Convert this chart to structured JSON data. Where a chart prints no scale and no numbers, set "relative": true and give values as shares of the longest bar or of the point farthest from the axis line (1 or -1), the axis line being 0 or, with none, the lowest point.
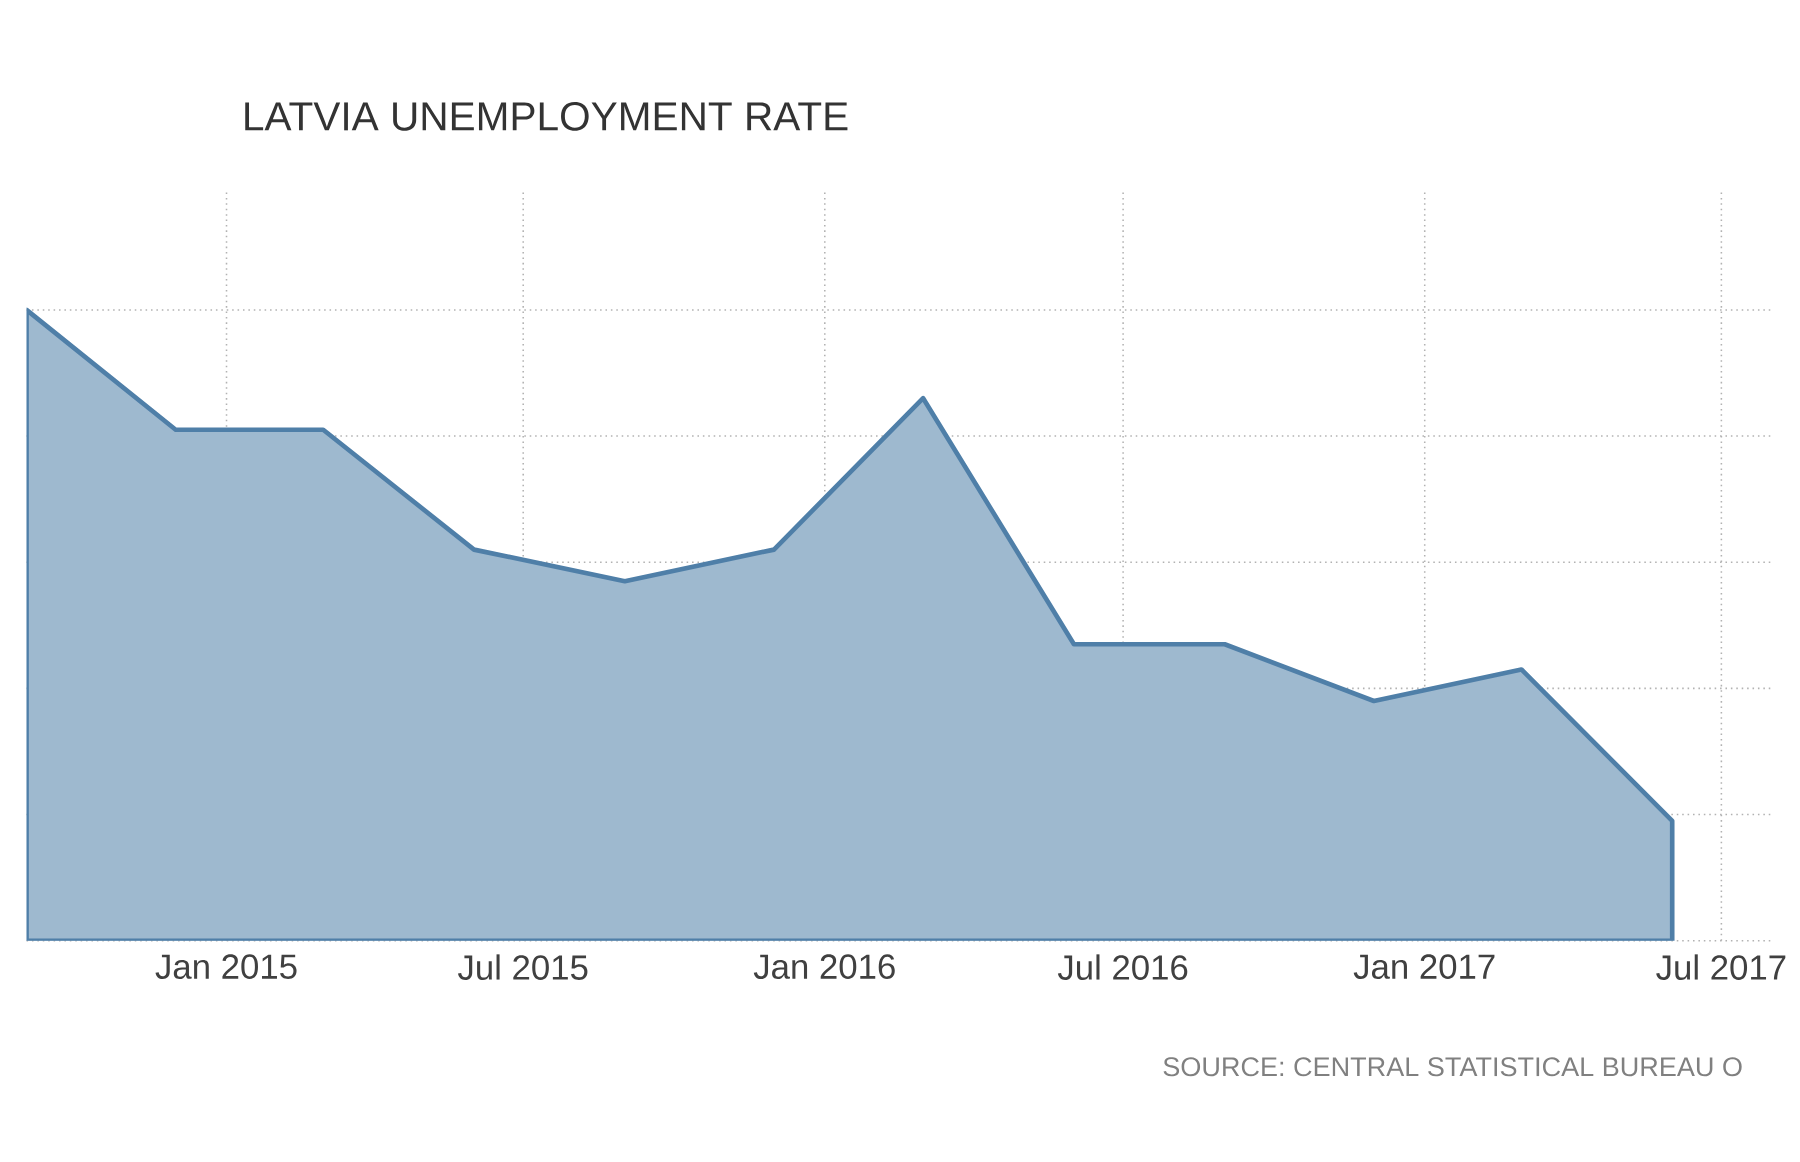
{
  "chart_data": {
    "type": "area",
    "title": "LATVIA UNEMPLOYMENT RATE",
    "relative": true,
    "grid": true,
    "x": [
      "2014-09",
      "2014-12",
      "2015-03",
      "2015-06",
      "2015-09",
      "2015-12",
      "2016-03",
      "2016-06",
      "2016-09",
      "2016-12",
      "2017-03",
      "2017-06"
    ],
    "series": [
      {
        "color": "#4f7fa8",
        "values": [
          1,
          0.81,
          0.81,
          0.62,
          0.57,
          0.62,
          0.86,
          0.47,
          0.47,
          0.38,
          0.43,
          0.19
        ]
      }
    ],
    "xlim": [
      "2014-09",
      "2017-08"
    ],
    "xticks": [
      {
        "value": "2015-01",
        "label": "Jan 2015"
      },
      {
        "value": "2015-07",
        "label": "Jul 2015"
      },
      {
        "value": "2016-01",
        "label": "Jan 2016"
      },
      {
        "value": "2016-07",
        "label": "Jul 2016"
      },
      {
        "value": "2017-01",
        "label": "Jan 2017"
      },
      {
        "value": "2017-07",
        "label": "Jul 2017"
      }
    ],
    "annotations": [
      "SOURCE: CENTRAL STATISTICAL BUREAU O"
    ]
  }
}
